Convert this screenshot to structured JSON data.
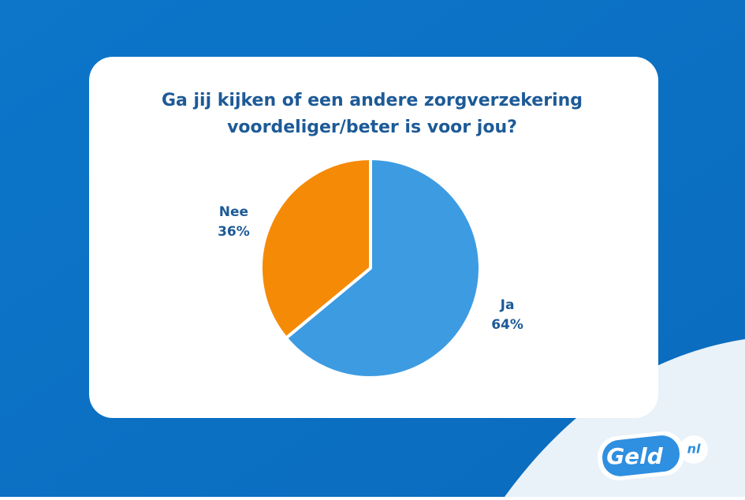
{
  "chart_data": {
    "type": "pie",
    "title": [
      "Ga jij kijken of een andere zorgverzekering",
      "voordeliger/beter is voor jou?"
    ],
    "categories": [
      "Ja",
      "Nee"
    ],
    "values": [
      64,
      36
    ],
    "value_labels": [
      "64%",
      "36%"
    ],
    "colors": [
      "#3d9be2",
      "#f58a07"
    ]
  },
  "logo": {
    "text": "Geld",
    "suffix": "nl"
  }
}
